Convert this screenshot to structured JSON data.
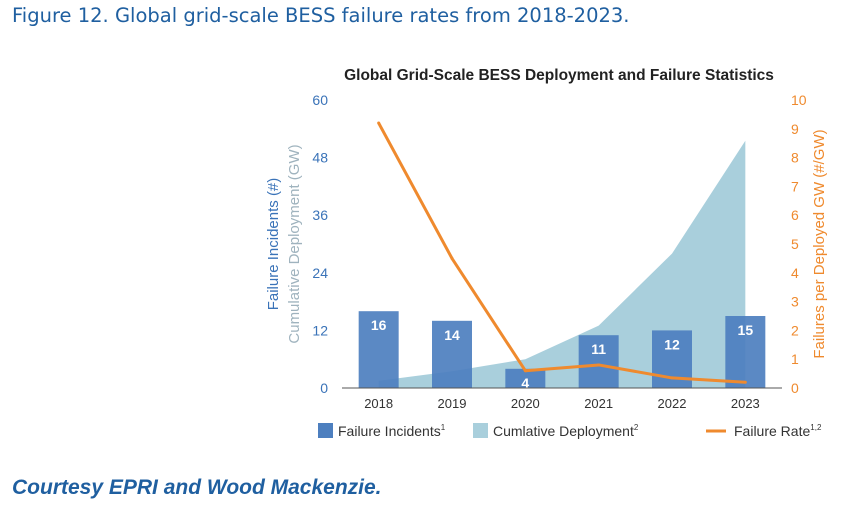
{
  "figure_title": "Figure 12. Global grid-scale BESS failure rates from 2018-2023.",
  "courtesy": "Courtesy EPRI and Wood Mackenzie.",
  "colors": {
    "bar": "#4d7fbf",
    "area": "#a9cfdc",
    "line": "#ef8a2e",
    "left_axis_text": "#3a73b8",
    "cumulative_label": "#9fb3be",
    "right_axis_text": "#ef8a2e",
    "title_text": "#1f5fa0"
  },
  "chart_data": {
    "type": "bar",
    "title": "Global Grid-Scale BESS Deployment and Failure Statistics",
    "categories": [
      "2018",
      "2019",
      "2020",
      "2021",
      "2022",
      "2023"
    ],
    "ylabel_left": "Failure Incidents (#)",
    "ylabel_left_secondary": "Cumulative Deployment (GW)",
    "ylabel_right": "Failures per Deployed GW (#/GW)",
    "ylim_left": [
      0,
      60
    ],
    "yticks_left": [
      0,
      12,
      24,
      36,
      48,
      60
    ],
    "ylim_right": [
      0,
      10
    ],
    "yticks_right": [
      0,
      1,
      2,
      3,
      4,
      5,
      6,
      7,
      8,
      9,
      10
    ],
    "series": [
      {
        "name": "Failure Incidents",
        "type": "bar",
        "axis": "left",
        "values": [
          16,
          14,
          4,
          11,
          12,
          15
        ],
        "labels": [
          "16",
          "14",
          "4",
          "11",
          "12",
          "15"
        ]
      },
      {
        "name": "Cumlative Deployment",
        "type": "area",
        "axis": "left",
        "values": [
          1.5,
          3.5,
          6,
          13,
          28,
          51.5
        ]
      },
      {
        "name": "Failure Rate",
        "type": "line",
        "axis": "right",
        "values": [
          9.2,
          4.5,
          0.6,
          0.8,
          0.35,
          0.2
        ]
      }
    ],
    "legend": [
      {
        "name": "Failure Incidents",
        "sup": "1",
        "kind": "bar"
      },
      {
        "name": "Cumlative Deployment",
        "sup": "2",
        "kind": "area"
      },
      {
        "name": "Failure Rate",
        "sup": "1,2",
        "kind": "line"
      }
    ],
    "legend_position": "bottom",
    "grid": false
  }
}
